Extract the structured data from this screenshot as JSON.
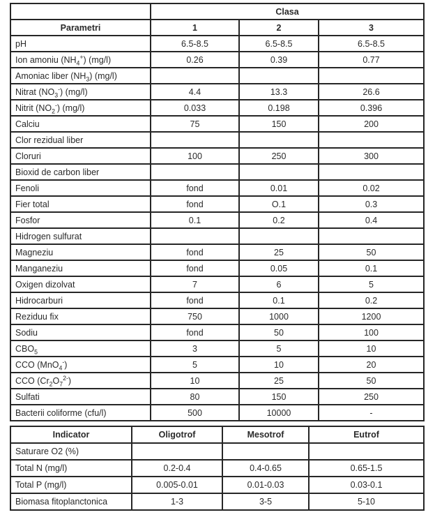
{
  "page": {
    "background_color": "#ffffff",
    "ink_color": "#2a2a2a",
    "border_color": "#262626"
  },
  "table1": {
    "title": "Clasa",
    "param_header": "Parametri",
    "class_columns": [
      "1",
      "2",
      "3"
    ],
    "rows": [
      {
        "param": "pH",
        "values": [
          "6.5-8.5",
          "6.5-8.5",
          "6.5-8.5"
        ]
      },
      {
        "param": "Ion amoniu (NH~4~^+^) (mg/l)",
        "values": [
          "0.26",
          "0.39",
          "0.77"
        ]
      },
      {
        "param": "Amoniac liber (NH~3~) (mg/l)",
        "values": [
          "",
          "",
          ""
        ]
      },
      {
        "param": "Nitrat (NO~3~^-^) (mg/l)",
        "values": [
          "4.4",
          "13.3",
          "26.6"
        ]
      },
      {
        "param": "Nitrit (NO~2~^-^) (mg/l)",
        "values": [
          "0.033",
          "0.198",
          "0.396"
        ]
      },
      {
        "param": "Calciu",
        "values": [
          "75",
          "150",
          "200"
        ]
      },
      {
        "param": "Clor rezidual liber",
        "values": [
          "",
          "",
          ""
        ]
      },
      {
        "param": "Cloruri",
        "values": [
          "100",
          "250",
          "300"
        ]
      },
      {
        "param": "Bioxid de carbon liber",
        "values": [
          "",
          "",
          ""
        ]
      },
      {
        "param": "Fenoli",
        "values": [
          "fond",
          "0.01",
          "0.02"
        ]
      },
      {
        "param": "Fier total",
        "values": [
          "fond",
          "O.1",
          "0.3"
        ]
      },
      {
        "param": "Fosfor",
        "values": [
          "0.1",
          "0.2",
          "0.4"
        ]
      },
      {
        "param": "Hidrogen sulfurat",
        "values": [
          "",
          "",
          ""
        ]
      },
      {
        "param": "Magneziu",
        "values": [
          "fond",
          "25",
          "50"
        ]
      },
      {
        "param": "Manganeziu",
        "values": [
          "fond",
          "0.05",
          "0.1"
        ]
      },
      {
        "param": "Oxigen dizolvat",
        "values": [
          "7",
          "6",
          "5"
        ]
      },
      {
        "param": "Hidrocarburi",
        "values": [
          "fond",
          "0.1",
          "0.2"
        ]
      },
      {
        "param": "Reziduu fix",
        "values": [
          "750",
          "1000",
          "1200"
        ]
      },
      {
        "param": "Sodiu",
        "values": [
          "fond",
          "50",
          "100"
        ]
      },
      {
        "param": "CBO~5~",
        "values": [
          "3",
          "5",
          "10"
        ]
      },
      {
        "param": "CCO (MnO~4~^-^)",
        "values": [
          "5",
          "10",
          "20"
        ]
      },
      {
        "param": "CCO (Cr~2~O~7~^2-^)",
        "values": [
          "10",
          "25",
          "50"
        ]
      },
      {
        "param": "Sulfati",
        "values": [
          "80",
          "150",
          "250"
        ]
      },
      {
        "param": "Bacterii coliforme (cfu/l)",
        "values": [
          "500",
          "10000",
          "-"
        ]
      }
    ]
  },
  "table2": {
    "headers": [
      "Indicator",
      "Oligotrof",
      "Mesotrof",
      "Eutrof"
    ],
    "rows": [
      {
        "param": "Saturare O2 (%)",
        "values": [
          "",
          "",
          ""
        ]
      },
      {
        "param": "Total N (mg/l)",
        "values": [
          "0.2-0.4",
          "0.4-0.65",
          "0.65-1.5"
        ]
      },
      {
        "param": "Total P (mg/l)",
        "values": [
          "0.005-0.01",
          "0.01-0.03",
          "0.03-0.1"
        ]
      },
      {
        "param": "Biomasa fitoplanctonica",
        "values": [
          "1-3",
          "3-5",
          "5-10"
        ]
      }
    ]
  }
}
